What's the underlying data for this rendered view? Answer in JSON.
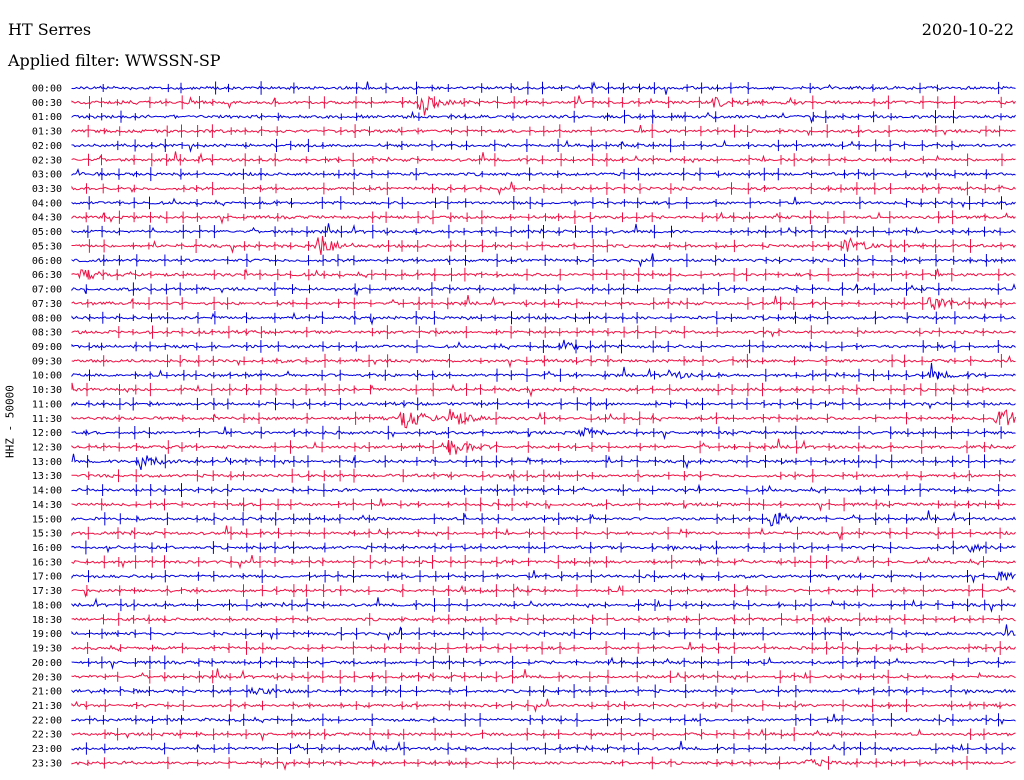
{
  "header": {
    "station": "HT Serres",
    "date": "2020-10-22",
    "filter": "Applied filter: WWSSN-SP"
  },
  "chart_data": {
    "type": "line",
    "ylabel": "HHZ - 50000",
    "rows": [
      "00:00",
      "00:30",
      "01:00",
      "01:30",
      "02:00",
      "02:30",
      "03:00",
      "03:30",
      "04:00",
      "04:30",
      "05:00",
      "05:30",
      "06:00",
      "06:30",
      "07:00",
      "07:30",
      "08:00",
      "08:30",
      "09:00",
      "09:30",
      "10:00",
      "10:30",
      "11:00",
      "11:30",
      "12:00",
      "12:30",
      "13:00",
      "13:30",
      "14:00",
      "14:30",
      "15:00",
      "15:30",
      "16:00",
      "16:30",
      "17:00",
      "17:30",
      "18:00",
      "18:30",
      "19:00",
      "19:30",
      "20:00",
      "20:30",
      "21:00",
      "21:30",
      "22:00",
      "22:30",
      "23:00",
      "23:30"
    ],
    "colors": [
      "#0000dd",
      "#ee1144"
    ],
    "grid": false,
    "events": [
      {
        "row": "00:30",
        "t": 0.37,
        "amp": 10
      },
      {
        "row": "00:30",
        "t": 0.68,
        "amp": 5
      },
      {
        "row": "05:30",
        "t": 0.26,
        "amp": 14
      },
      {
        "row": "05:30",
        "t": 0.82,
        "amp": 9
      },
      {
        "row": "06:30",
        "t": 0.01,
        "amp": 5
      },
      {
        "row": "07:30",
        "t": 0.91,
        "amp": 7
      },
      {
        "row": "09:00",
        "t": 0.52,
        "amp": 6
      },
      {
        "row": "10:00",
        "t": 0.63,
        "amp": 5
      },
      {
        "row": "10:00",
        "t": 0.91,
        "amp": 5
      },
      {
        "row": "11:30",
        "t": 0.35,
        "amp": 14
      },
      {
        "row": "11:30",
        "t": 0.4,
        "amp": 10
      },
      {
        "row": "11:30",
        "t": 0.98,
        "amp": 15
      },
      {
        "row": "12:00",
        "t": 0.54,
        "amp": 5
      },
      {
        "row": "12:30",
        "t": 0.4,
        "amp": 12
      },
      {
        "row": "13:00",
        "t": 0.07,
        "amp": 12
      },
      {
        "row": "15:00",
        "t": 0.74,
        "amp": 10
      },
      {
        "row": "16:00",
        "t": 0.95,
        "amp": 5
      },
      {
        "row": "17:00",
        "t": 0.98,
        "amp": 5
      },
      {
        "row": "19:00",
        "t": 0.99,
        "amp": 5
      },
      {
        "row": "21:00",
        "t": 0.19,
        "amp": 5
      },
      {
        "row": "23:30",
        "t": 0.78,
        "amp": 4
      }
    ]
  }
}
